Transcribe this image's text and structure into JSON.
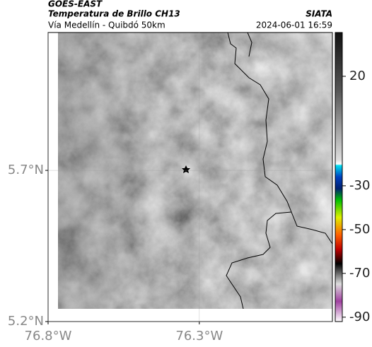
{
  "header": {
    "title": "GOES-EAST",
    "subtitle": "Temperatura de Brillo CH13",
    "region": "Vía Medellín - Quibdó 50km",
    "source": "SIATA",
    "timestamp": "2024-06-01 16:59"
  },
  "map": {
    "xlim": [
      -76.8,
      -75.86
    ],
    "ylim": [
      5.2,
      6.156
    ],
    "xticks": [
      {
        "value": -76.8,
        "label": "76.8°W"
      },
      {
        "value": -76.3,
        "label": "76.3°W"
      }
    ],
    "yticks": [
      {
        "value": 5.7,
        "label": "5.7°N"
      },
      {
        "value": 5.2,
        "label": "5.2°N"
      }
    ]
  },
  "colorbar": {
    "range": [
      40,
      -92
    ],
    "ticks": [
      20,
      -30,
      -50,
      -70,
      -90
    ]
  }
}
